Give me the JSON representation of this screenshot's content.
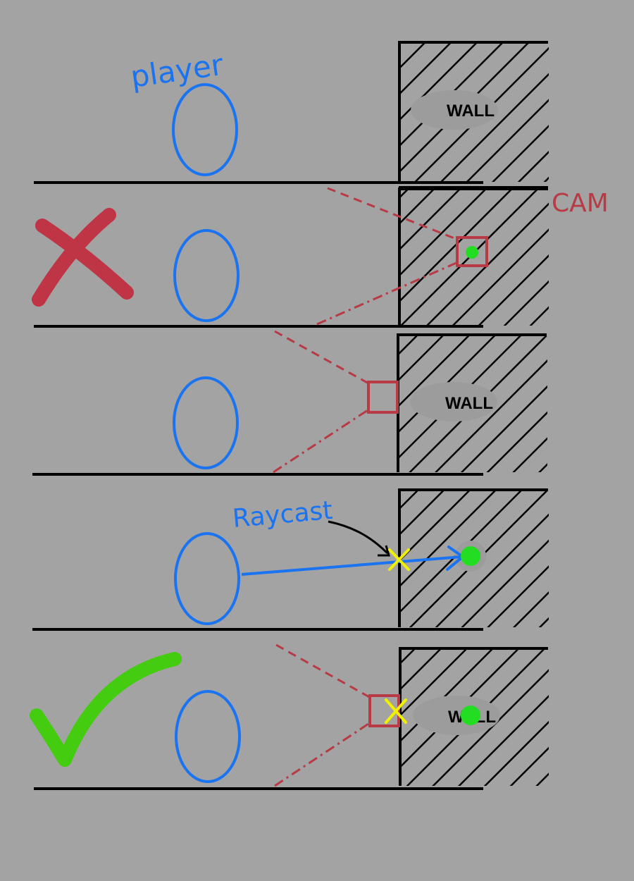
{
  "labels": {
    "player": "player",
    "cam": "CAM",
    "raycast": "Raycast",
    "wall": "WALL"
  },
  "colors": {
    "background": "#a3a3a3",
    "player": "#1a73f0",
    "camera": "#b83a45",
    "target": "#22dd22",
    "hit": "#f0f000",
    "check": "#44cc11",
    "cross": "#c03545",
    "ink": "#000000",
    "label_bg": "#9c9c9c"
  },
  "icons": {
    "wrong": "cross-icon",
    "right": "check-icon",
    "camera": "camera-box-icon",
    "hit_point": "x-marker-icon"
  },
  "panels": [
    {
      "id": "scene",
      "wall_label": "WALL",
      "shows_camera": false,
      "shows_ray": false,
      "verdict": ""
    },
    {
      "id": "camera-inside-wall",
      "wall_label": "",
      "shows_camera": true,
      "shows_ray": false,
      "verdict": "wrong"
    },
    {
      "id": "camera-at-wall-face",
      "wall_label": "WALL",
      "shows_camera": true,
      "shows_ray": false,
      "verdict": ""
    },
    {
      "id": "raycast",
      "wall_label": "",
      "shows_camera": false,
      "shows_ray": true,
      "verdict": ""
    },
    {
      "id": "camera-at-hit-point",
      "wall_label": "WALL",
      "shows_camera": true,
      "shows_ray": false,
      "verdict": "right"
    }
  ]
}
